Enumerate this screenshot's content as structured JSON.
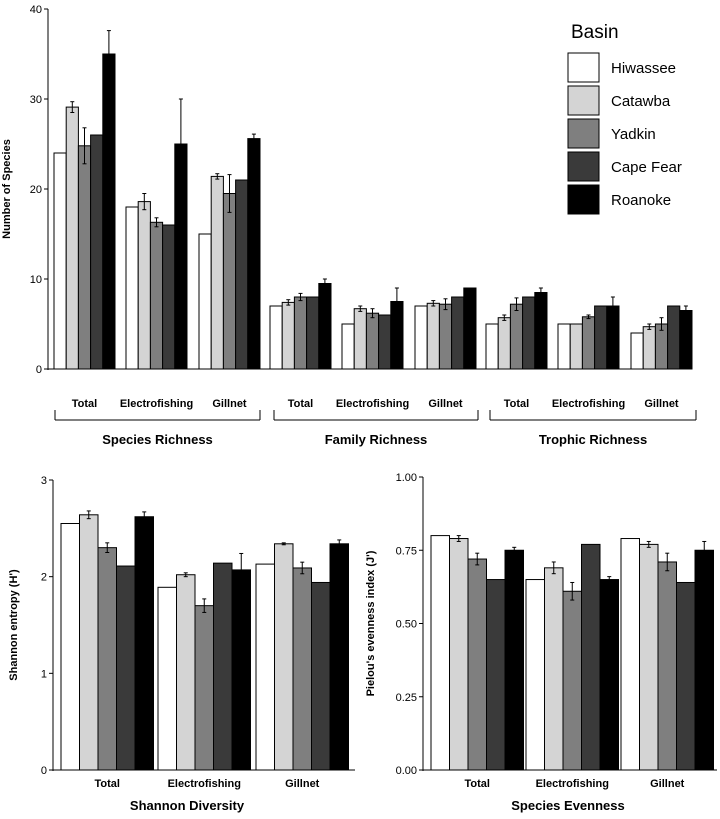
{
  "chart_data": [
    {
      "type": "bar",
      "ylabel": "Number of Species",
      "ylim": [
        0,
        40
      ],
      "yticks": [
        "0",
        "10",
        "20",
        "30",
        "40"
      ],
      "categories": [
        "Total",
        "Electrofishing",
        "Gillnet",
        "Total",
        "Electrofishing",
        "Gillnet",
        "Total",
        "Electrofishing",
        "Gillnet"
      ],
      "groups": [
        {
          "label": "Species Richness",
          "span": [
            0,
            2
          ]
        },
        {
          "label": "Family Richness",
          "span": [
            3,
            5
          ]
        },
        {
          "label": "Trophic Richness",
          "span": [
            6,
            8
          ]
        }
      ],
      "series": [
        {
          "name": "Hiwassee",
          "color": "#ffffff",
          "values": [
            24,
            18,
            15,
            7,
            5,
            7,
            5,
            5,
            4
          ],
          "errors": [
            0,
            0,
            0,
            0,
            0,
            0,
            0,
            0,
            0
          ]
        },
        {
          "name": "Catawba",
          "color": "#d4d4d4",
          "values": [
            29.1,
            18.6,
            21.4,
            7.4,
            6.7,
            7.3,
            5.7,
            5,
            4.7
          ],
          "errors": [
            0.6,
            0.9,
            0.3,
            0.3,
            0.3,
            0.3,
            0.3,
            0,
            0.3
          ]
        },
        {
          "name": "Yadkin",
          "color": "#7f7f7f",
          "values": [
            24.8,
            16.3,
            19.5,
            8,
            6.2,
            7.2,
            7.2,
            5.8,
            5
          ],
          "errors": [
            2,
            0.5,
            2.1,
            0.4,
            0.5,
            0.6,
            0.7,
            0.2,
            0.7
          ]
        },
        {
          "name": "Cape Fear",
          "color": "#3a3a3a",
          "values": [
            26,
            16,
            21,
            8,
            6,
            8,
            8,
            7,
            7
          ],
          "errors": [
            0,
            0,
            0,
            0,
            0,
            0,
            0,
            0,
            0
          ]
        },
        {
          "name": "Roanoke",
          "color": "#000000",
          "values": [
            35,
            25,
            25.6,
            9.5,
            7.5,
            9,
            8.5,
            7,
            6.5
          ],
          "errors": [
            2.6,
            5,
            0.5,
            0.5,
            1.5,
            0,
            0.5,
            1,
            0.5
          ]
        }
      ],
      "legend": {
        "title": "Basin",
        "position": "top-right"
      }
    },
    {
      "type": "bar",
      "title": "Shannon Diversity",
      "ylabel": "Shannon entropy (H')",
      "ylim": [
        0,
        3
      ],
      "yticks": [
        "0",
        "1",
        "2",
        "3"
      ],
      "categories": [
        "Total",
        "Electrofishing",
        "Gillnet"
      ],
      "series": [
        {
          "name": "Hiwassee",
          "values": [
            2.55,
            1.89,
            2.13
          ],
          "errors": [
            0,
            0,
            0
          ]
        },
        {
          "name": "Catawba",
          "values": [
            2.64,
            2.02,
            2.34
          ],
          "errors": [
            0.04,
            0.02,
            0.01
          ]
        },
        {
          "name": "Yadkin",
          "values": [
            2.3,
            1.7,
            2.09
          ],
          "errors": [
            0.05,
            0.07,
            0.06
          ]
        },
        {
          "name": "Cape Fear",
          "values": [
            2.11,
            2.14,
            1.94
          ],
          "errors": [
            0,
            0,
            0
          ]
        },
        {
          "name": "Roanoke",
          "values": [
            2.62,
            2.07,
            2.34
          ],
          "errors": [
            0.05,
            0.17,
            0.04
          ]
        }
      ]
    },
    {
      "type": "bar",
      "title": "Species Evenness",
      "ylabel": "Pielou's evenness index (J')",
      "ylim": [
        0,
        1
      ],
      "yticks": [
        "0.00",
        "0.25",
        "0.50",
        "0.75",
        "1.00"
      ],
      "categories": [
        "Total",
        "Electrofishing",
        "Gillnet"
      ],
      "series": [
        {
          "name": "Hiwassee",
          "values": [
            0.8,
            0.65,
            0.79
          ],
          "errors": [
            0,
            0,
            0
          ]
        },
        {
          "name": "Catawba",
          "values": [
            0.79,
            0.69,
            0.77
          ],
          "errors": [
            0.01,
            0.02,
            0.01
          ]
        },
        {
          "name": "Yadkin",
          "values": [
            0.72,
            0.61,
            0.71
          ],
          "errors": [
            0.02,
            0.03,
            0.03
          ]
        },
        {
          "name": "Cape Fear",
          "values": [
            0.65,
            0.77,
            0.64
          ],
          "errors": [
            0,
            0,
            0
          ]
        },
        {
          "name": "Roanoke",
          "values": [
            0.75,
            0.65,
            0.75
          ],
          "errors": [
            0.01,
            0.01,
            0.03
          ]
        }
      ]
    }
  ]
}
